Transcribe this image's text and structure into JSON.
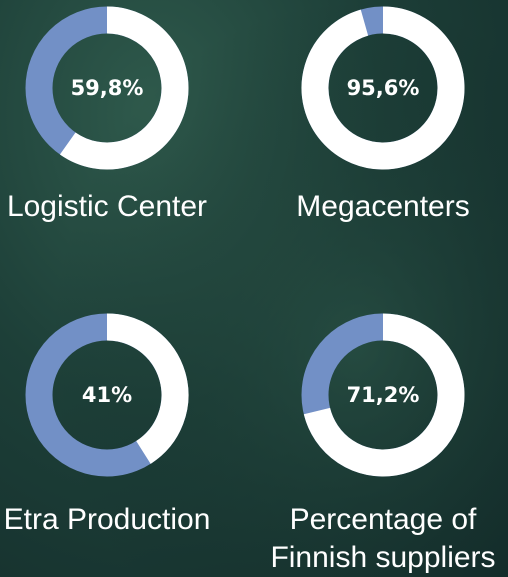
{
  "chart_data": [
    {
      "type": "donut",
      "title": "Logistic Center",
      "values": [
        59.8
      ],
      "value_labels": [
        "59,8%"
      ],
      "colors": [
        "#ffffff",
        "#7290c6"
      ]
    },
    {
      "type": "donut",
      "title": "Megacenters",
      "values": [
        95.6
      ],
      "value_labels": [
        "95,6%"
      ],
      "colors": [
        "#ffffff",
        "#7290c6"
      ]
    },
    {
      "type": "donut",
      "title": "Etra Production",
      "values": [
        41
      ],
      "value_labels": [
        "41%"
      ],
      "colors": [
        "#ffffff",
        "#7290c6"
      ]
    },
    {
      "type": "donut",
      "title": "Percentage of Finnish suppliers",
      "values": [
        71.2
      ],
      "value_labels": [
        "71,2%"
      ],
      "colors": [
        "#ffffff",
        "#7290c6"
      ]
    }
  ]
}
